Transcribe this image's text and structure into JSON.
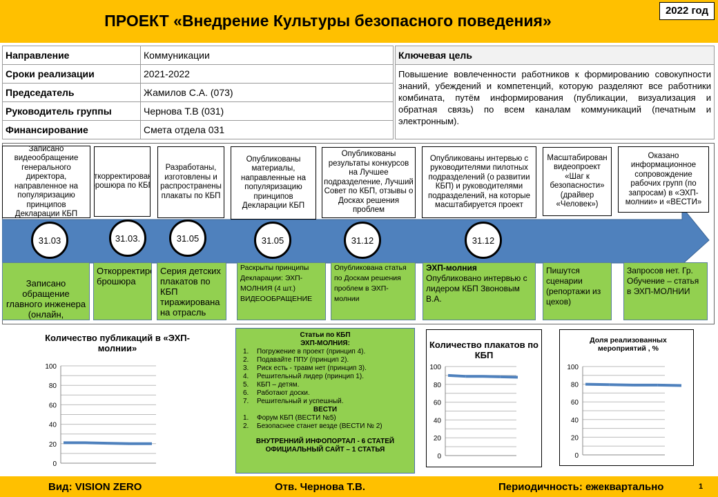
{
  "header": {
    "title": "ПРОЕКТ «Внедрение Культуры безопасного поведения»",
    "year": "2022 год"
  },
  "info": [
    {
      "key": "Направление",
      "value": "Коммуникации"
    },
    {
      "key": "Сроки реализации",
      "value": "2021-2022"
    },
    {
      "key": "Председатель",
      "value": "Жамилов С.А. (073)"
    },
    {
      "key": "Руководитель группы",
      "value": "Чернова Т.В (031)"
    },
    {
      "key": "Финансирование",
      "value": "Смета отдела 031"
    }
  ],
  "goal": {
    "title": "Ключевая цель",
    "text": "Повышение вовлеченности работников к формированию совокупности знаний, убеждений и компетенций, которую разделяют все работники комбината, путём информирования (публикации, визуализация и обратная связь) по всем каналам коммуникаций (печатным и электронным)."
  },
  "timeline": {
    "plans": [
      "Записано видеообращение генерального директора, направленное на популяризацию принципов Декларации КБП",
      "Откорректирована брошюра по КБП",
      "Разработаны, изготовлены и распространены плакаты по КБП",
      "Опубликованы материалы, направленные на популяризацию принципов Декларации КБП",
      "Опубликованы результаты конкурсов на Лучшее подразделение, Лучший Совет по КБП, отзывы о Досках решения проблем",
      "Опубликованы интервью с руководителями пилотных подразделений (о развитии КБП) и руководителями подразделений, на которые масштабируется проект",
      "Масштабирован видеопроект «Шаг к безопасности» (драйвер «Человек»)",
      "Оказано информационное сопровождение рабочих групп (по запросам) в «ЭХП-молнии» и «ВЕСТИ»"
    ],
    "dates": [
      "31.03",
      "31.03.",
      "31.05",
      "31.05",
      "31.12",
      "31.12"
    ],
    "results": [
      "Записано обращение главного инженера (онлайн, инфоэкраны)",
      "Откорректирована брошюра",
      "Серия детских плакатов по КБП тиражирована на отрасль",
      "Раскрыты принципы Декларации: ЭХП-МОЛНИЯ (4 шт.) ВИДЕООБРАЩЕНИЕ",
      "Опубликована статья по Доскам решения проблем в ЭХП-молнии",
      "Опубликовано интервью с лидером КБП Звоновым В.А.",
      "Пишутся сценарии (репортажи из цехов)",
      "Запросов нет. Гр. Обучение – статья в ЭХП-МОЛНИИ"
    ],
    "result6_bold": "ЭХП-молния",
    "arrow_color": "#4F81BD",
    "result_color": "#92D050"
  },
  "articles": {
    "title": "Статьи по КБП",
    "sub1": "ЭХП-МОЛНИЯ:",
    "items1": [
      "Погружение в проект (принцип 4).",
      "Подавайте ППУ (принцип 2).",
      "Риск есть - травм нет (принцип 3).",
      "Решительный лидер (принцип 1).",
      "КБП – детям.",
      "Работают доски.",
      "Решительный и успешный."
    ],
    "sub2": "ВЕСТИ",
    "items2": [
      "Форум КБП (ВЕСТИ №5)",
      "Безопаснее станет везде (ВЕСТИ № 2)"
    ],
    "footer1": "ВНУТРЕННИЙ  ИНФОПОРТАЛ  - 6 СТАТЕЙ",
    "footer2": "ОФИЦИАЛЬНЫЙ САЙТ – 1 СТАТЬЯ"
  },
  "chart_data": [
    {
      "type": "line",
      "title": "Количество публикаций в «ЭХП- молнии»",
      "ylim": [
        0,
        100
      ],
      "yticks": [
        "0",
        "20",
        "40",
        "60",
        "80",
        "100"
      ],
      "values": [
        21,
        21,
        20.5,
        20,
        20
      ],
      "grid": true,
      "color": "#4F81BD"
    },
    {
      "type": "line",
      "title": "Количество плакатов по КБП",
      "ylim": [
        0,
        100
      ],
      "yticks": [
        "0",
        "20",
        "40",
        "60",
        "80",
        "100"
      ],
      "values": [
        90,
        89,
        89,
        88.5,
        88
      ],
      "grid": true,
      "color": "#4F81BD"
    },
    {
      "type": "line",
      "title": "Доля реализованных мероприятий , %",
      "ylim": [
        0,
        100
      ],
      "yticks": [
        "0",
        "20",
        "40",
        "60",
        "80",
        "100"
      ],
      "values": [
        80,
        79.5,
        79,
        79,
        78.5
      ],
      "grid": true,
      "color": "#4F81BD"
    }
  ],
  "footer": {
    "type": "Вид: VISION ZERO",
    "resp": "Отв.  Чернова Т.В.",
    "period": "Периодичность: ежеквартально",
    "page": "1"
  }
}
